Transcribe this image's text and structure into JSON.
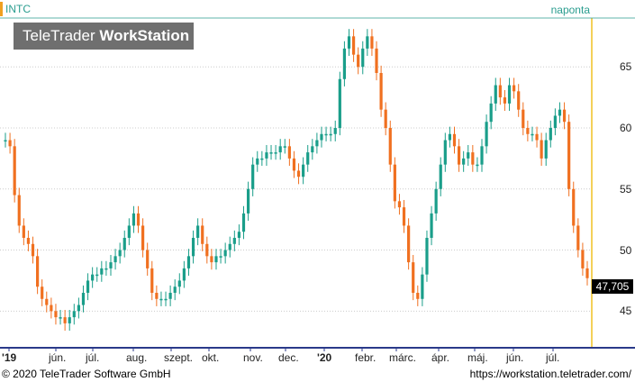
{
  "header": {
    "ticker": "INTC",
    "period": "naponta"
  },
  "logo": {
    "part1": "TeleTrader ",
    "part2": "WorkStation"
  },
  "footer": {
    "copyright": "© 2020 TeleTrader Software GmbH",
    "url": "https://workstation.teletrader.com/"
  },
  "colors": {
    "up": "#1a9e8a",
    "down": "#f07020",
    "accent": "#f0a020",
    "axis": "#2a3a8a"
  },
  "last_price": "47,705",
  "chart_data": {
    "type": "line",
    "title": "",
    "xlabel": "",
    "ylabel": "",
    "ylim": [
      42,
      69
    ],
    "yticks": [
      45,
      50,
      55,
      60,
      65
    ],
    "x_labels": [
      "'19",
      "jún.",
      "júl.",
      "aug.",
      "szept.",
      "okt.",
      "nov.",
      "dec.",
      "'20",
      "febr.",
      "márc.",
      "ápr.",
      "máj.",
      "jún.",
      "júl."
    ],
    "series": [
      {
        "values": [
          59.0,
          58.5,
          54.5,
          52.0,
          51.0,
          50.5,
          49.5,
          47.0,
          46.0,
          45.5,
          45.0,
          44.5,
          44.5,
          44.0,
          44.5,
          45.0,
          45.5,
          46.5,
          47.5,
          48.0,
          48.0,
          48.5,
          48.5,
          49.0,
          49.5,
          50.0,
          51.0,
          52.0,
          53.0,
          52.0,
          50.0,
          48.5,
          46.5,
          46.0,
          46.0,
          46.0,
          46.5,
          47.0,
          47.5,
          48.5,
          49.5,
          51.0,
          52.0,
          50.5,
          49.5,
          49.0,
          49.5,
          49.5,
          50.0,
          50.5,
          51.0,
          51.5,
          53.0,
          55.0,
          57.0,
          57.5,
          57.5,
          58.0,
          58.0,
          58.0,
          58.5,
          58.5,
          57.5,
          56.5,
          56.0,
          57.0,
          58.0,
          58.5,
          59.0,
          59.5,
          59.5,
          59.5,
          60.0,
          64.0,
          66.5,
          67.5,
          66.0,
          65.0,
          66.5,
          67.5,
          66.5,
          64.5,
          61.5,
          60.0,
          57.0,
          54.0,
          53.5,
          52.0,
          49.0,
          46.5,
          46.0,
          48.0,
          51.0,
          53.0,
          55.0,
          57.0,
          59.0,
          59.5,
          58.5,
          57.0,
          57.5,
          58.0,
          57.0,
          57.0,
          58.5,
          60.5,
          62.0,
          63.5,
          62.5,
          62.0,
          63.5,
          63.0,
          61.5,
          60.0,
          59.5,
          59.5,
          59.0,
          57.5,
          59.0,
          60.0,
          61.0,
          61.5,
          60.5,
          55.0,
          52.0,
          50.0,
          48.5,
          47.7
        ]
      }
    ]
  }
}
